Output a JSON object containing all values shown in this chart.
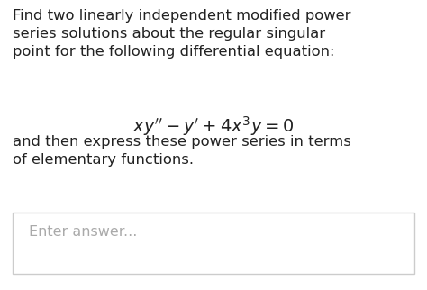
{
  "background_color": "#ffffff",
  "text_color": "#222222",
  "placeholder_color": "#aaaaaa",
  "box_edge_color": "#cccccc",
  "paragraph1": "Find two linearly independent modified power\nseries solutions about the regular singular\npoint for the following differential equation:",
  "equation": "$xy'' - y' + 4x^3y = 0$",
  "paragraph2": "and then express these power series in terms\nof elementary functions.",
  "placeholder": "Enter answer...",
  "font_size_body": 11.8,
  "font_size_equation": 14.0,
  "font_size_placeholder": 11.5
}
